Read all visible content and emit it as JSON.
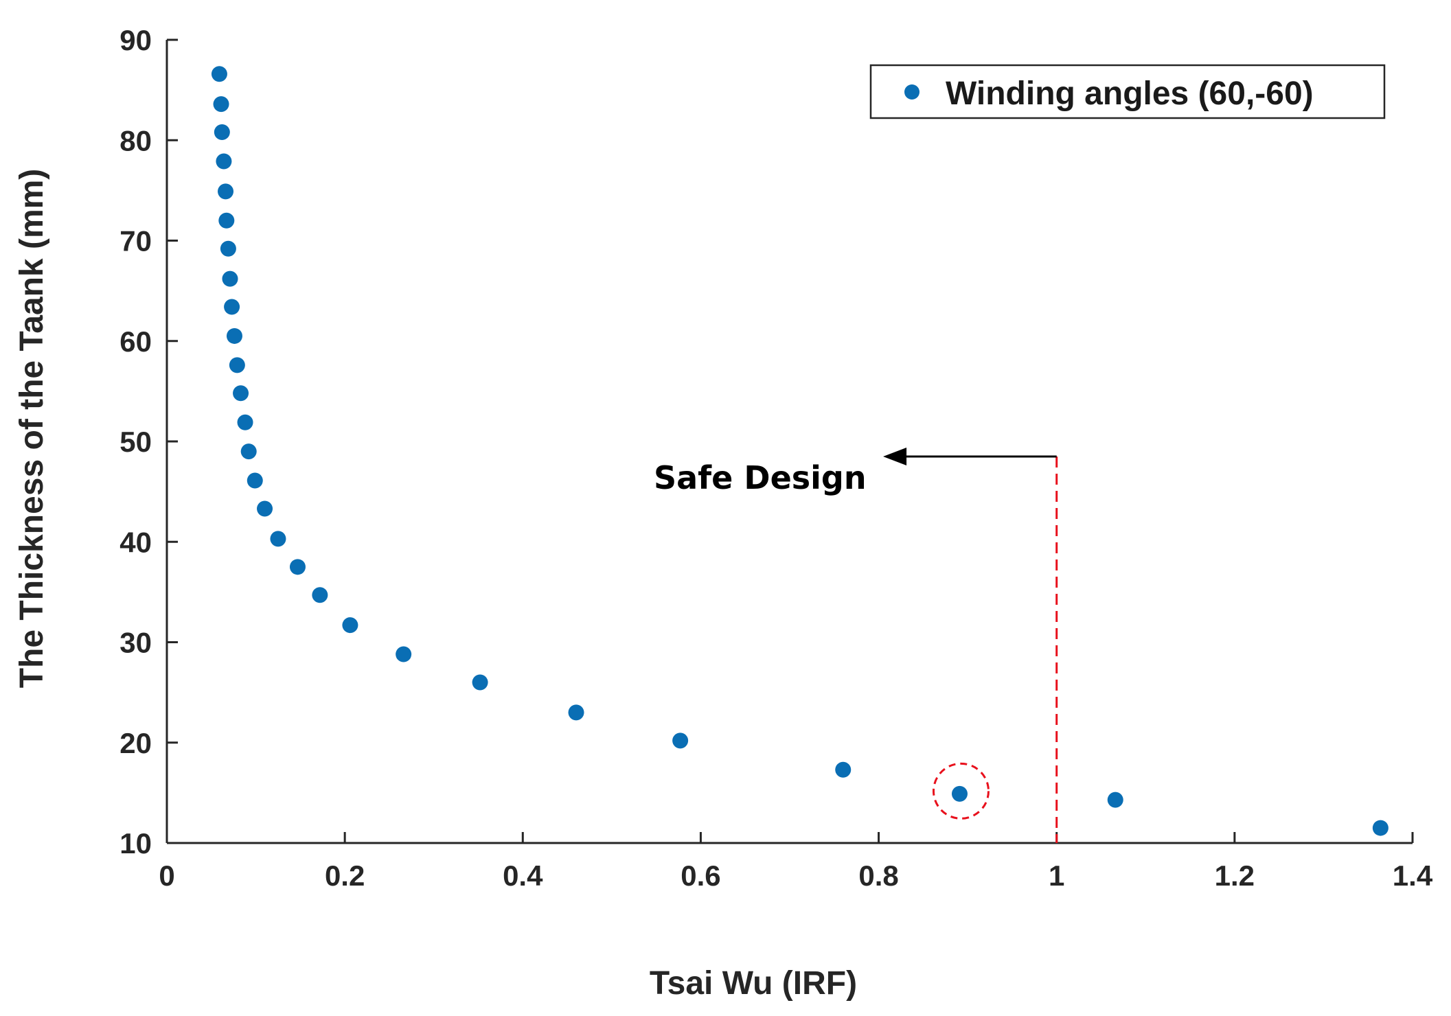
{
  "chart_data": {
    "type": "scatter",
    "xlabel": "Tsai Wu (IRF)",
    "ylabel": "The Thickness of the Taank (mm)",
    "xlim": [
      0,
      1.4
    ],
    "ylim": [
      10,
      90
    ],
    "xticks": [
      0,
      0.2,
      0.4,
      0.6,
      0.8,
      1,
      1.2,
      1.4
    ],
    "xtick_labels": [
      "0",
      "0.2",
      "0.4",
      "0.6",
      "0.8",
      "1",
      "1.2",
      "1.4"
    ],
    "yticks": [
      10,
      20,
      30,
      40,
      50,
      60,
      70,
      80,
      90
    ],
    "ytick_labels": [
      "10",
      "20",
      "30",
      "40",
      "50",
      "60",
      "70",
      "80",
      "90"
    ],
    "grid": false,
    "legend_position": "top-right",
    "series": [
      {
        "name": "Winding angles (60,-60)",
        "color": "#0a6eb4",
        "points": [
          {
            "x": 0.059,
            "y": 86.6
          },
          {
            "x": 0.061,
            "y": 83.6
          },
          {
            "x": 0.062,
            "y": 80.8
          },
          {
            "x": 0.064,
            "y": 77.9
          },
          {
            "x": 0.066,
            "y": 74.9
          },
          {
            "x": 0.067,
            "y": 72.0
          },
          {
            "x": 0.069,
            "y": 69.2
          },
          {
            "x": 0.071,
            "y": 66.2
          },
          {
            "x": 0.073,
            "y": 63.4
          },
          {
            "x": 0.076,
            "y": 60.5
          },
          {
            "x": 0.079,
            "y": 57.6
          },
          {
            "x": 0.083,
            "y": 54.8
          },
          {
            "x": 0.088,
            "y": 51.9
          },
          {
            "x": 0.092,
            "y": 49.0
          },
          {
            "x": 0.099,
            "y": 46.1
          },
          {
            "x": 0.11,
            "y": 43.3
          },
          {
            "x": 0.125,
            "y": 40.3
          },
          {
            "x": 0.147,
            "y": 37.5
          },
          {
            "x": 0.172,
            "y": 34.7
          },
          {
            "x": 0.206,
            "y": 31.7
          },
          {
            "x": 0.266,
            "y": 28.8
          },
          {
            "x": 0.352,
            "y": 26.0
          },
          {
            "x": 0.46,
            "y": 23.0
          },
          {
            "x": 0.577,
            "y": 20.2
          },
          {
            "x": 0.76,
            "y": 17.3
          },
          {
            "x": 0.891,
            "y": 14.9
          },
          {
            "x": 1.066,
            "y": 14.3
          },
          {
            "x": 1.364,
            "y": 11.5
          }
        ]
      }
    ],
    "threshold_line": {
      "x": 1.0,
      "y_from": 10,
      "y_to": 48.5,
      "color": "#e8101c",
      "style": "dashed"
    },
    "highlighted_point": {
      "x": 0.891,
      "y": 14.9,
      "color": "#e8101c"
    },
    "annotations": [
      {
        "text": "Safe Design",
        "arrow_direction": "left",
        "arrow_from_x": 1.0,
        "arrow_to_x": 0.805,
        "arrow_y": 48.5
      }
    ]
  }
}
